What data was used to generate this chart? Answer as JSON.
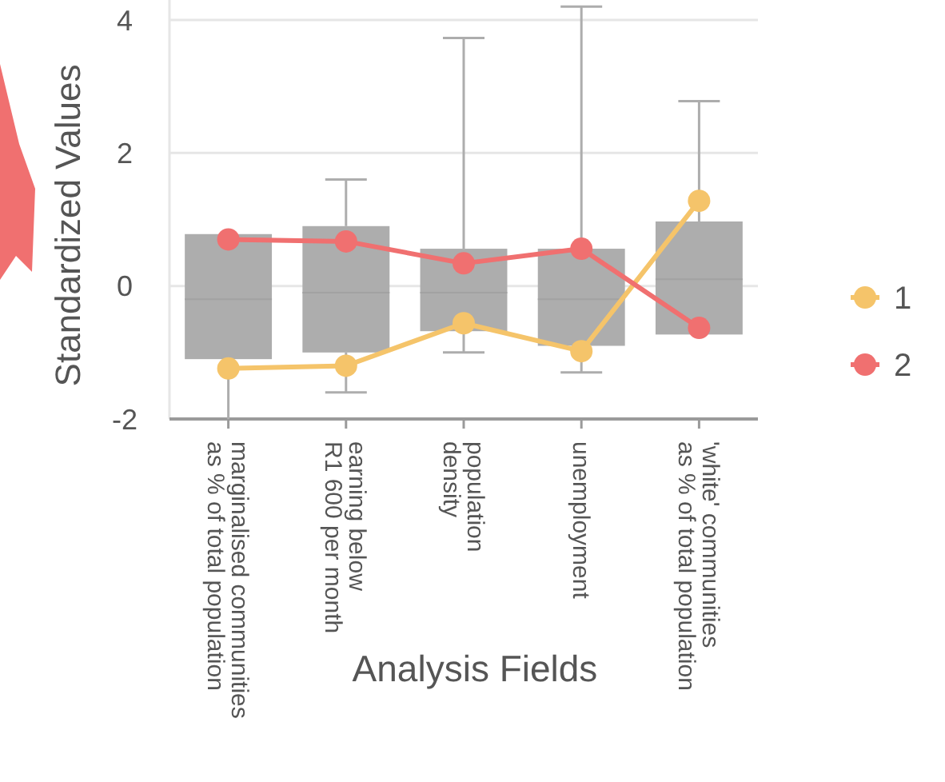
{
  "chart_data": {
    "type": "box",
    "xlabel": "Analysis Fields",
    "ylabel": "Standardized Values",
    "categories": [
      "marginalised communities\nas % of total population",
      "earning below\nR1 600 per month",
      "population\ndensity",
      "unemployment",
      "'white' communities\nas % of total population"
    ],
    "boxes": [
      {
        "low": -2,
        "q1": -1.1,
        "median": -0.2,
        "q3": 0.78,
        "high": 0.78
      },
      {
        "low": -1.6,
        "q1": -1.0,
        "median": -0.1,
        "q3": 0.9,
        "high": 1.6
      },
      {
        "low": -1.0,
        "q1": -0.68,
        "median": -0.1,
        "q3": 0.56,
        "high": 3.73
      },
      {
        "low": -1.3,
        "q1": -0.9,
        "median": -0.2,
        "q3": 0.56,
        "high": 4.2
      },
      {
        "low": -0.73,
        "q1": -0.73,
        "median": 0.1,
        "q3": 0.97,
        "high": 2.78
      }
    ],
    "color": "#adadad",
    "series": [
      {
        "type": "line",
        "name": "1",
        "color": "#f5c46a",
        "values": [
          -1.24,
          -1.2,
          -0.56,
          -0.98,
          1.28
        ]
      },
      {
        "type": "line",
        "name": "2",
        "color": "#f07070",
        "values": [
          0.7,
          0.67,
          0.34,
          0.56,
          -0.63
        ]
      }
    ],
    "ylim": [
      -2,
      4.3
    ],
    "yticks": [
      -2,
      0,
      2,
      4
    ],
    "grid": "y",
    "legend": "right",
    "marker": "circle"
  }
}
